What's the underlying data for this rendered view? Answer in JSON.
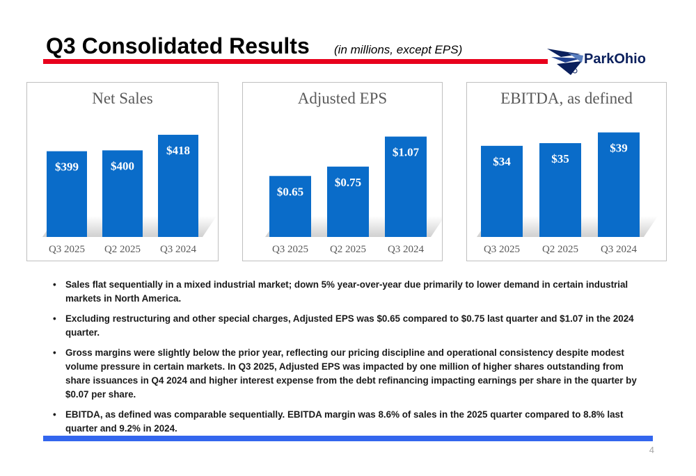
{
  "slide": {
    "title": "Q3 Consolidated Results",
    "subtitle": "(in millions, except EPS)",
    "logo_text": "ParkOhio",
    "page_number": "4",
    "colors": {
      "accent_red": "#e8001c",
      "bar_blue": "#0a6cc9",
      "footer_blue": "#3366ee"
    }
  },
  "chart_data": [
    {
      "type": "bar",
      "title": "Net Sales",
      "categories": [
        "Q3 2025",
        "Q2 2025",
        "Q3 2024"
      ],
      "values": [
        399,
        400,
        418
      ],
      "value_labels": [
        "$399",
        "$400",
        "$418"
      ],
      "ylim": [
        300,
        430
      ],
      "grid": false
    },
    {
      "type": "bar",
      "title": "Adjusted EPS",
      "categories": [
        "Q3 2025",
        "Q2 2025",
        "Q3 2024"
      ],
      "values": [
        0.65,
        0.75,
        1.07
      ],
      "value_labels": [
        "$0.65",
        "$0.75",
        "$1.07"
      ],
      "ylim": [
        0,
        1.2
      ],
      "grid": false
    },
    {
      "type": "bar",
      "title": "EBITDA, as defined",
      "categories": [
        "Q3 2025",
        "Q2 2025",
        "Q3 2024"
      ],
      "values": [
        34,
        35,
        39
      ],
      "value_labels": [
        "$34",
        "$35",
        "$39"
      ],
      "ylim": [
        0,
        42
      ],
      "grid": false
    }
  ],
  "bullets": [
    "Sales flat sequentially in a mixed industrial market;  down 5% year-over-year due primarily to lower demand in certain industrial markets in North America.",
    "Excluding restructuring and other special charges, Adjusted EPS was $0.65 compared to $0.75 last quarter and $1.07 in the 2024 quarter.",
    "Gross margins were slightly below the prior year, reflecting our pricing discipline and operational consistency despite modest volume pressure in certain markets.  In Q3 2025, Adjusted EPS was impacted by one million of higher shares outstanding from share issuances in Q4 2024 and higher interest expense from the debt refinancing impacting earnings per share in the quarter by $0.07 per share.",
    "EBITDA, as defined was comparable sequentially.  EBITDA margin was 8.6% of sales in the 2025 quarter compared to 8.8% last quarter and 9.2% in 2024."
  ]
}
